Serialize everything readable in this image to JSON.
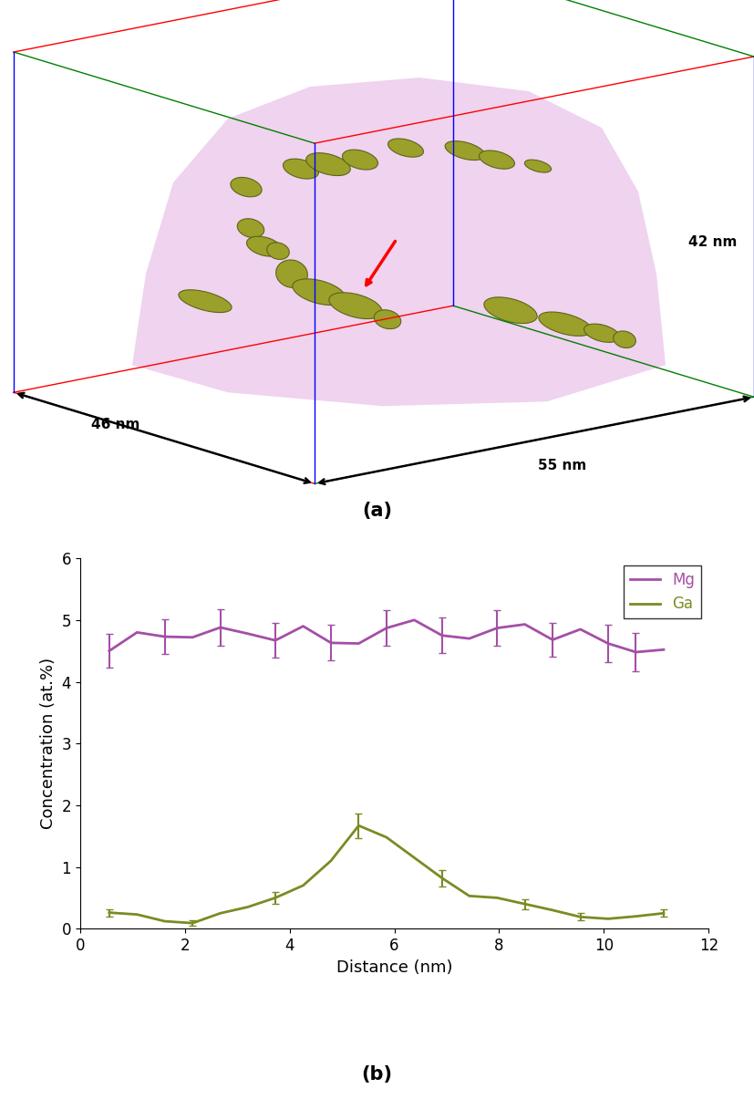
{
  "panel_labels": [
    "(a)",
    "(b)"
  ],
  "reconstruction": {
    "dimension_labels": [
      "46 nm",
      "55 nm",
      "42 nm"
    ]
  },
  "chart_data": {
    "type": "line",
    "x_label": "Distance (nm)",
    "y_label": "Concentration (at.%)",
    "x": [
      0.56,
      1.09,
      1.62,
      2.15,
      2.68,
      3.2,
      3.73,
      4.26,
      4.79,
      5.32,
      5.85,
      6.38,
      6.91,
      7.43,
      7.96,
      8.49,
      9.02,
      9.55,
      10.08,
      10.61,
      11.14
    ],
    "series": [
      {
        "name": "Mg",
        "color": "#a34fa6",
        "values": [
          4.5,
          4.8,
          4.73,
          4.72,
          4.88,
          4.78,
          4.67,
          4.9,
          4.63,
          4.62,
          4.87,
          5.0,
          4.75,
          4.7,
          4.87,
          4.93,
          4.68,
          4.85,
          4.62,
          4.48,
          4.52
        ],
        "errors": [
          0.27,
          null,
          0.28,
          null,
          0.29,
          null,
          0.28,
          null,
          0.29,
          null,
          0.29,
          null,
          0.29,
          null,
          0.29,
          null,
          0.28,
          null,
          0.3,
          0.31,
          null
        ]
      },
      {
        "name": "Ga",
        "color": "#7d8a23",
        "values": [
          0.26,
          0.23,
          0.12,
          0.09,
          0.25,
          0.35,
          0.5,
          0.7,
          1.1,
          1.67,
          1.48,
          1.15,
          0.82,
          0.53,
          0.5,
          0.4,
          0.3,
          0.19,
          0.16,
          0.2,
          0.25
        ],
        "errors": [
          0.06,
          null,
          null,
          0.04,
          null,
          null,
          0.1,
          null,
          null,
          0.2,
          null,
          null,
          0.13,
          null,
          null,
          0.08,
          null,
          0.06,
          null,
          null,
          0.06
        ]
      }
    ],
    "xlim": [
      0,
      12
    ],
    "xticks": [
      0,
      2,
      4,
      6,
      8,
      10,
      12
    ],
    "ylim": [
      0,
      6
    ],
    "yticks": [
      0,
      1,
      2,
      3,
      4,
      5,
      6
    ],
    "legend": "upper right",
    "grid": false
  }
}
